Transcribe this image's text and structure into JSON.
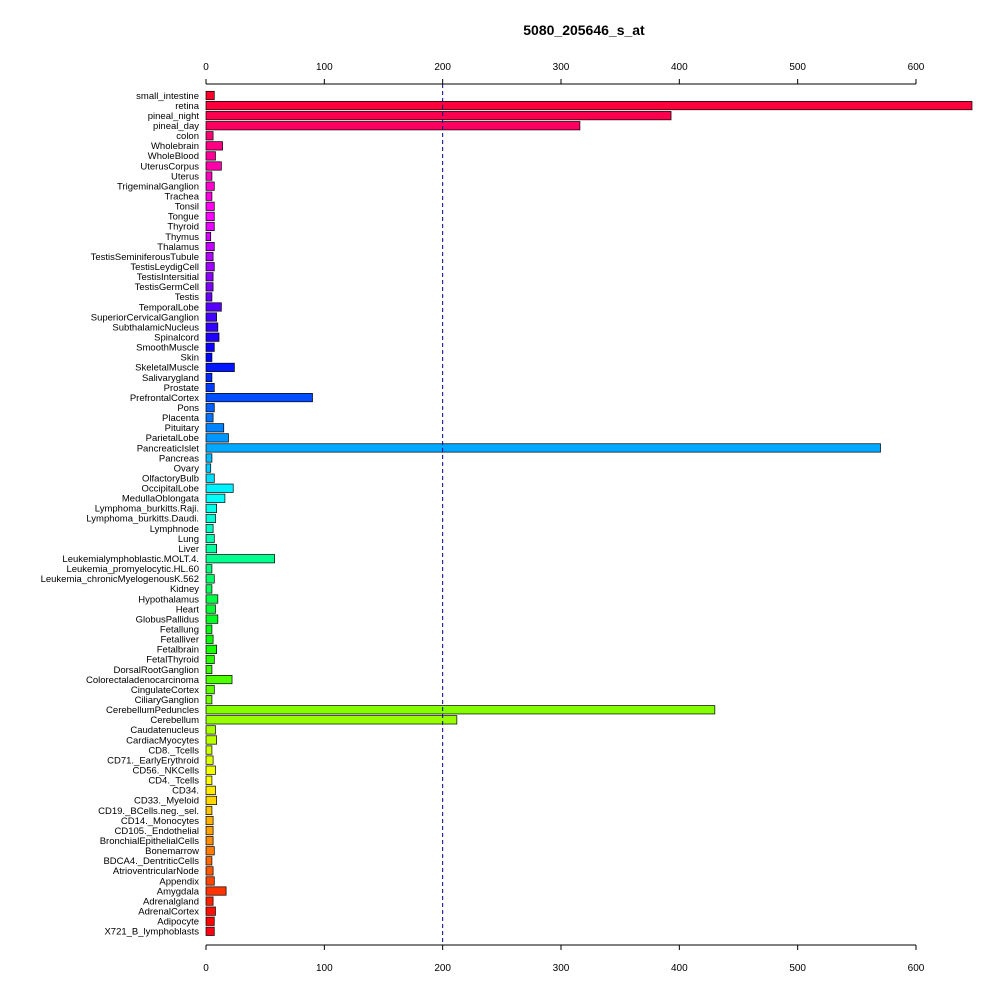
{
  "chart_data": {
    "type": "bar",
    "orientation": "horizontal",
    "title": "5080_205646_s_at",
    "xlabel": "",
    "ylabel": "",
    "xlim": [
      0,
      600
    ],
    "x_ticks": [
      0,
      100,
      200,
      300,
      400,
      500,
      600
    ],
    "axes": [
      "top",
      "bottom"
    ],
    "reference_line": {
      "value": 200,
      "style": "dashed",
      "color": "#00008B"
    },
    "grid": false,
    "color_scheme": "rainbow",
    "categories": [
      "small_intestine",
      "retina",
      "pineal_night",
      "pineal_day",
      "colon",
      "Wholebrain",
      "WholeBlood",
      "UterusCorpus",
      "Uterus",
      "TrigeminalGanglion",
      "Trachea",
      "Tonsil",
      "Tongue",
      "Thyroid",
      "Thymus",
      "Thalamus",
      "TestisSeminiferousTubule",
      "TestisLeydigCell",
      "TestisIntersitial",
      "TestisGermCell",
      "Testis",
      "TemporalLobe",
      "SuperiorCervicalGanglion",
      "SubthalamicNucleus",
      "Spinalcord",
      "SmoothMuscle",
      "Skin",
      "SkeletalMuscle",
      "Salivarygland",
      "Prostate",
      "PrefrontalCortex",
      "Pons",
      "Placenta",
      "Pituitary",
      "ParietalLobe",
      "PancreaticIslet",
      "Pancreas",
      "Ovary",
      "OlfactoryBulb",
      "OccipitalLobe",
      "MedullaOblongata",
      "Lymphoma_burkitts.Raji.",
      "Lymphoma_burkitts.Daudi.",
      "Lymphnode",
      "Lung",
      "Liver",
      "Leukemialymphoblastic.MOLT.4.",
      "Leukemia_promyelocytic.HL.60",
      "Leukemia_chronicMyelogenousK.562",
      "Kidney",
      "Hypothalamus",
      "Heart",
      "GlobusPallidus",
      "Fetallung",
      "Fetalliver",
      "Fetalbrain",
      "FetalThyroid",
      "DorsalRootGanglion",
      "Colorectaladenocarcinoma",
      "CingulateCortex",
      "CiliaryGanglion",
      "CerebellumPeduncles",
      "Cerebellum",
      "Caudatenucleus",
      "CardiacMyocytes",
      "CD8._Tcells",
      "CD71._EarlyErythroid",
      "CD56._NKCells",
      "CD4._Tcells",
      "CD34.",
      "CD33._Myeloid",
      "CD19._BCells.neg._sel.",
      "CD14._Monocytes",
      "CD105._Endothelial",
      "BronchialEpithelialCells",
      "Bonemarrow",
      "BDCA4._DentriticCells",
      "AtrioventricularNode",
      "Appendix",
      "Amygdala",
      "Adrenalgland",
      "AdrenalCortex",
      "Adipocyte",
      "X721_B_lymphoblasts"
    ],
    "values": [
      7,
      648,
      393,
      316,
      6,
      14,
      8,
      13,
      5,
      7,
      5,
      7,
      7,
      7,
      4,
      7,
      6,
      7,
      6,
      6,
      5,
      13,
      9,
      10,
      11,
      7,
      5,
      24,
      5,
      7,
      90,
      7,
      6,
      15,
      19,
      570,
      5,
      4,
      7,
      23,
      16,
      9,
      8,
      6,
      7,
      9,
      58,
      5,
      7,
      5,
      10,
      8,
      10,
      5,
      6,
      9,
      7,
      5,
      22,
      7,
      5,
      430,
      212,
      8,
      9,
      5,
      6,
      8,
      5,
      8,
      9,
      5,
      6,
      6,
      6,
      7,
      5,
      6,
      7,
      17,
      6,
      8,
      7,
      7
    ]
  }
}
